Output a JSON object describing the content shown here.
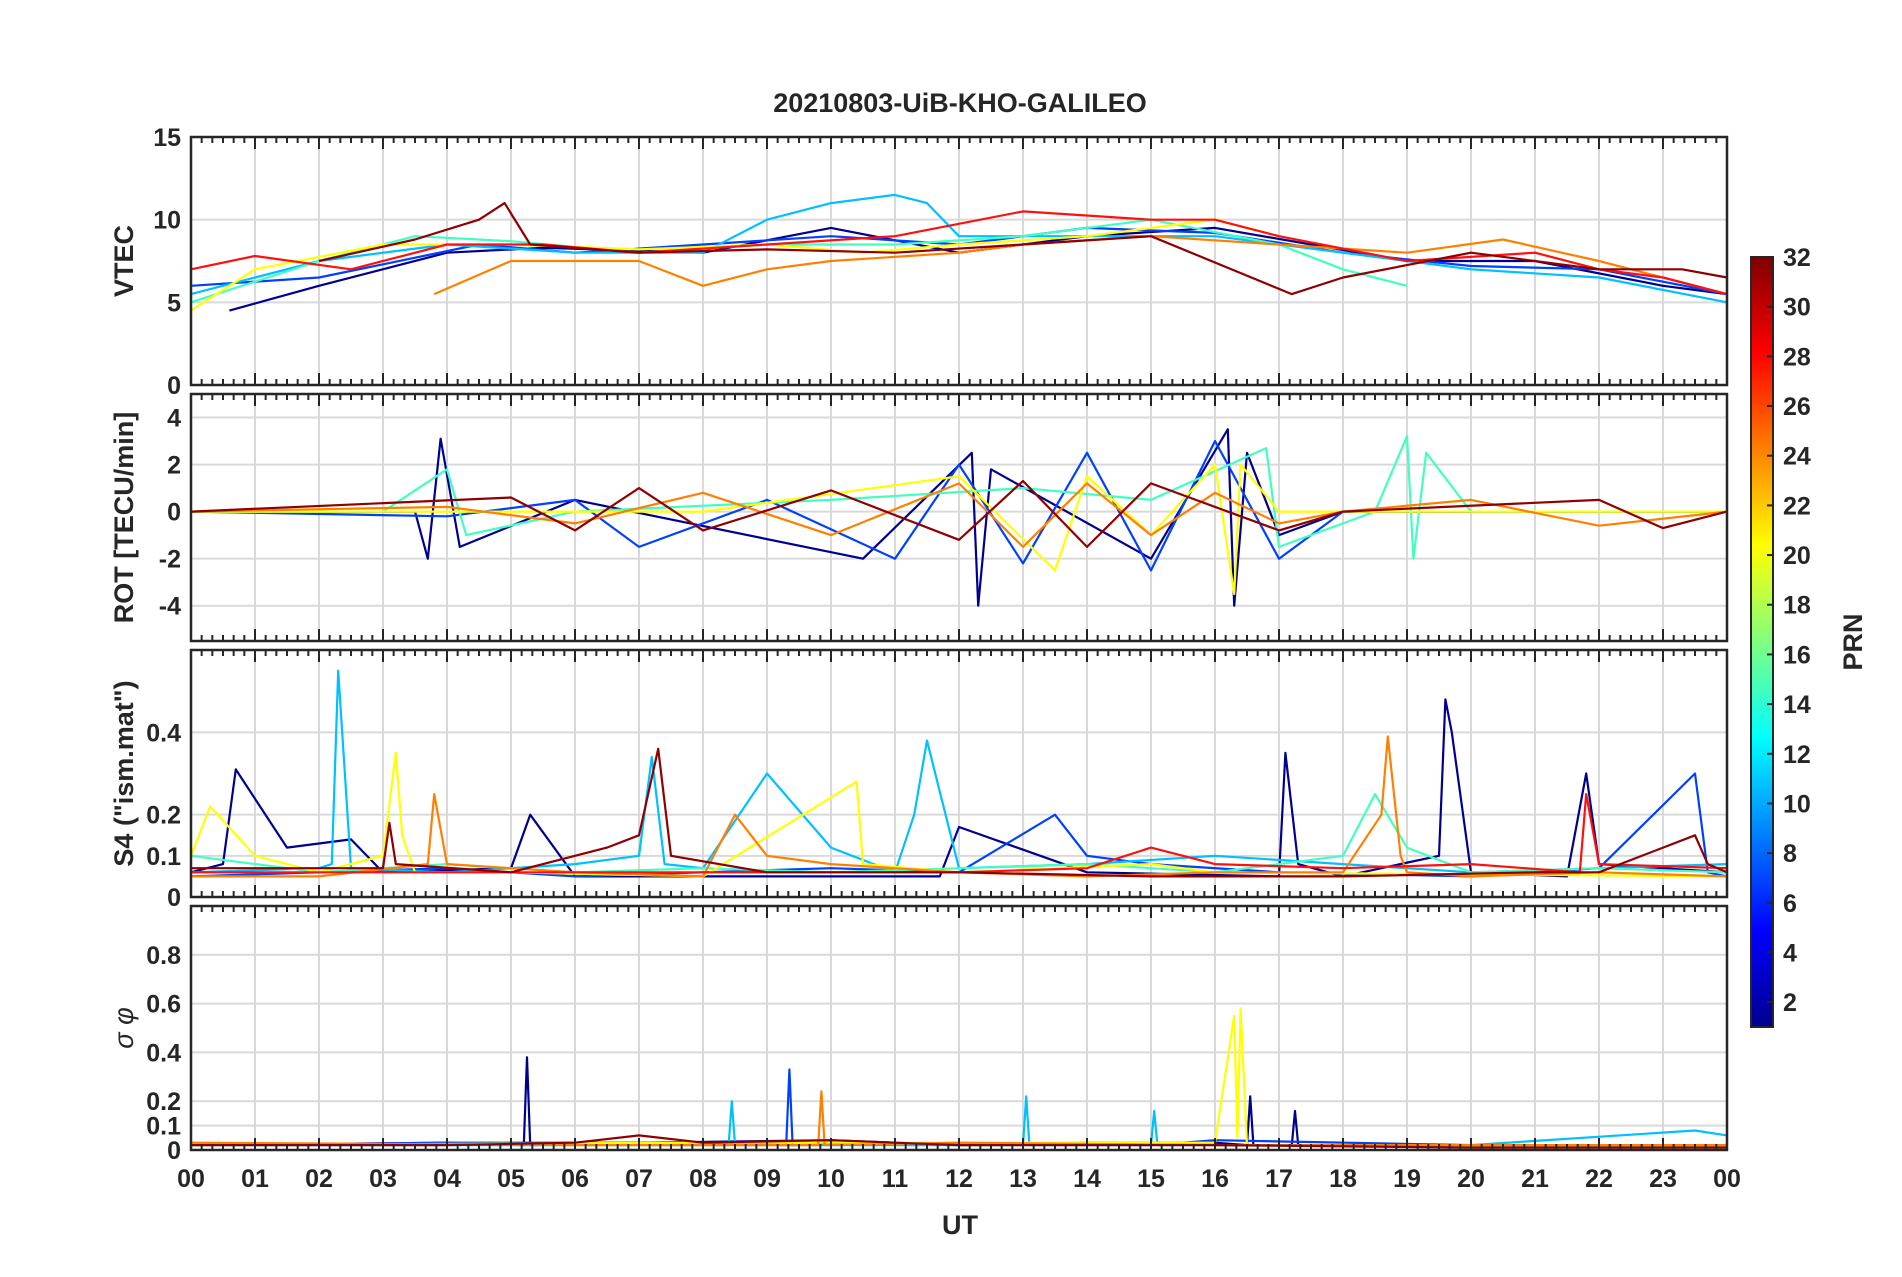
{
  "title": "20210803-UiB-KHO-GALILEO",
  "xlabel": "UT",
  "x_tick_labels": [
    "00",
    "01",
    "02",
    "03",
    "04",
    "05",
    "06",
    "07",
    "08",
    "09",
    "10",
    "11",
    "12",
    "13",
    "14",
    "15",
    "16",
    "17",
    "18",
    "19",
    "20",
    "21",
    "22",
    "23",
    "00"
  ],
  "colorbar": {
    "label": "PRN",
    "range": [
      1,
      32
    ],
    "tick_labels": [
      "2",
      "4",
      "6",
      "8",
      "10",
      "12",
      "14",
      "16",
      "18",
      "20",
      "22",
      "24",
      "26",
      "28",
      "30",
      "32"
    ],
    "colormap": "jet"
  },
  "chart_data": [
    {
      "type": "line",
      "ylabel": "VTEC",
      "ylim": [
        0,
        15
      ],
      "y_tick_labels": [
        "0",
        "5",
        "10",
        "15"
      ],
      "grid": true,
      "series": [
        {
          "color": "#00008f",
          "x": [
            0.6,
            2,
            4,
            5.5,
            8,
            10,
            12,
            14,
            16,
            17.5,
            19,
            21,
            23,
            24
          ],
          "y": [
            4.5,
            6,
            8,
            8.3,
            8,
            9.5,
            8,
            9,
            9.5,
            8.5,
            7.5,
            7.5,
            6,
            5.5
          ]
        },
        {
          "color": "#0040ff",
          "x": [
            0,
            2,
            4.5,
            6,
            8,
            10,
            12,
            14,
            16,
            18,
            20,
            22,
            24
          ],
          "y": [
            6,
            6.5,
            8.5,
            8,
            8.5,
            9,
            8.5,
            9.5,
            9.2,
            8,
            7.2,
            7,
            5.5
          ]
        },
        {
          "color": "#00c0ff",
          "x": [
            0,
            2,
            4,
            6,
            8,
            9,
            10,
            11,
            11.5,
            12,
            14,
            16,
            18,
            20,
            22,
            24
          ],
          "y": [
            5.5,
            7.5,
            8.5,
            8,
            8,
            10,
            11,
            11.5,
            11,
            9,
            9,
            9,
            8,
            7,
            6.5,
            5
          ]
        },
        {
          "color": "#40ffbf",
          "x": [
            0,
            2,
            3.5,
            5,
            7,
            9,
            11,
            13,
            15,
            17,
            18,
            19
          ],
          "y": [
            5,
            7.5,
            9,
            8.7,
            8,
            8.5,
            8.5,
            9,
            10,
            8.5,
            7,
            6
          ]
        },
        {
          "color": "#ffff00",
          "x": [
            0,
            1,
            3,
            5,
            7,
            9,
            10.5,
            12,
            14,
            16,
            17
          ],
          "y": [
            4.5,
            7,
            8.5,
            8.5,
            8.2,
            8.5,
            8,
            8.5,
            9,
            10,
            9
          ]
        },
        {
          "color": "#ff8000",
          "x": [
            3.8,
            5,
            7,
            8,
            9,
            10,
            12,
            13,
            15,
            17,
            19,
            20.5,
            22,
            24
          ],
          "y": [
            5.5,
            7.5,
            7.5,
            6,
            7,
            7.5,
            8,
            8.5,
            9,
            8.5,
            8,
            8.8,
            7.5,
            5.5
          ]
        },
        {
          "color": "#ff1010",
          "x": [
            0,
            1,
            2.5,
            4,
            5.5,
            7,
            9,
            11,
            13,
            15,
            16,
            17,
            19,
            21,
            22,
            23,
            24
          ],
          "y": [
            7,
            7.8,
            7,
            8.5,
            8.5,
            8,
            8.5,
            9,
            10.5,
            10,
            10,
            9,
            7.5,
            8,
            7,
            6.5,
            5.5
          ]
        },
        {
          "color": "#8f0000",
          "x": [
            2,
            3.5,
            4.5,
            4.9,
            5.3,
            7,
            9,
            11,
            13,
            15,
            17.2,
            18,
            20,
            22,
            23.3,
            24
          ],
          "y": [
            7.5,
            8.8,
            10,
            11,
            8.5,
            8,
            8.2,
            8,
            8.5,
            9,
            5.5,
            6.5,
            8,
            7,
            7,
            6.5
          ]
        }
      ]
    },
    {
      "type": "line",
      "ylabel": "ROT [TECU/min]",
      "ylim": [
        -5.5,
        5
      ],
      "y_tick_labels": [
        "-4",
        "-2",
        "0",
        "2",
        "4"
      ],
      "grid": true,
      "series": [
        {
          "color": "#00008f",
          "x": [
            0,
            3.5,
            3.7,
            3.9,
            4.2,
            6,
            10.5,
            12.2,
            12.3,
            12.5,
            15,
            16.2,
            16.3,
            16.5,
            17,
            18,
            24
          ],
          "y": [
            0,
            0,
            -2,
            3.1,
            -1.5,
            0.5,
            -2,
            2.5,
            -4,
            1.8,
            -2,
            3.5,
            -4,
            2.5,
            -1,
            0,
            0
          ]
        },
        {
          "color": "#0040ff",
          "x": [
            0,
            4,
            6,
            7,
            9,
            11,
            12,
            13,
            14,
            15,
            16,
            17,
            18,
            24
          ],
          "y": [
            0,
            -0.2,
            0.5,
            -1.5,
            0.5,
            -2,
            2,
            -2.2,
            2.5,
            -2.5,
            3,
            -2,
            0,
            0
          ]
        },
        {
          "color": "#40ffbf",
          "x": [
            0,
            3,
            4,
            4.3,
            6,
            10,
            13,
            15,
            16.8,
            17,
            18.5,
            19,
            19.1,
            19.3,
            20,
            24
          ],
          "y": [
            0,
            0,
            1.8,
            -1,
            0,
            0.5,
            1,
            0.5,
            2.7,
            -1.5,
            0,
            3.2,
            -2,
            2.5,
            0,
            0
          ]
        },
        {
          "color": "#ffff00",
          "x": [
            0,
            4,
            8,
            12,
            13.5,
            14,
            15,
            16,
            16.3,
            16.4,
            17,
            18,
            24
          ],
          "y": [
            0,
            0,
            0,
            1.5,
            -2.5,
            1.5,
            -1,
            2,
            -3.5,
            2,
            0,
            0,
            0
          ]
        },
        {
          "color": "#ff8000",
          "x": [
            0,
            4,
            6,
            8,
            10,
            12,
            13,
            14,
            15,
            16,
            17,
            18,
            20,
            22,
            24
          ],
          "y": [
            0,
            0.2,
            -0.5,
            0.8,
            -1,
            1.2,
            -1.5,
            1.2,
            -1,
            0.8,
            -0.5,
            0,
            0.5,
            -0.6,
            0
          ]
        },
        {
          "color": "#8f0000",
          "x": [
            0,
            5,
            6,
            7,
            8,
            10,
            12,
            13,
            14,
            15,
            17,
            18,
            22,
            23,
            24
          ],
          "y": [
            0,
            0.6,
            -0.8,
            1,
            -0.8,
            0.9,
            -1.2,
            1.3,
            -1.5,
            1.2,
            -0.8,
            0,
            0.5,
            -0.7,
            0
          ]
        }
      ]
    },
    {
      "type": "line",
      "ylabel": "S4 (\"ism.mat\")",
      "ylim": [
        0,
        0.6
      ],
      "y_tick_labels": [
        "0",
        "0.1",
        "0.2",
        "0.4"
      ],
      "grid": true,
      "series": [
        {
          "color": "#00008f",
          "x": [
            0,
            0.5,
            0.7,
            1.5,
            2.5,
            3,
            5,
            5.3,
            6,
            8,
            11.7,
            12,
            14,
            17,
            17.1,
            17.3,
            18,
            19.5,
            19.6,
            19.7,
            20,
            21.5,
            21.8,
            22,
            24
          ],
          "y": [
            0.06,
            0.08,
            0.31,
            0.12,
            0.14,
            0.06,
            0.07,
            0.2,
            0.05,
            0.05,
            0.05,
            0.17,
            0.06,
            0.05,
            0.35,
            0.08,
            0.05,
            0.1,
            0.48,
            0.4,
            0.06,
            0.05,
            0.3,
            0.08,
            0.06
          ]
        },
        {
          "color": "#0040ff",
          "x": [
            0,
            2,
            4,
            6,
            8,
            10,
            12,
            13.5,
            14,
            15,
            17,
            20,
            22,
            23.5,
            23.7,
            24
          ],
          "y": [
            0.05,
            0.06,
            0.07,
            0.05,
            0.06,
            0.07,
            0.06,
            0.2,
            0.1,
            0.08,
            0.06,
            0.05,
            0.07,
            0.3,
            0.06,
            0.05
          ]
        },
        {
          "color": "#00c0ff",
          "x": [
            0,
            2,
            2.2,
            2.3,
            2.5,
            4,
            6,
            7,
            7.2,
            7.4,
            8,
            9,
            10,
            11,
            11.3,
            11.5,
            12,
            14,
            16,
            18,
            20,
            22,
            24
          ],
          "y": [
            0.06,
            0.07,
            0.08,
            0.55,
            0.07,
            0.06,
            0.08,
            0.1,
            0.34,
            0.08,
            0.07,
            0.3,
            0.12,
            0.06,
            0.2,
            0.38,
            0.07,
            0.08,
            0.1,
            0.08,
            0.06,
            0.07,
            0.08
          ]
        },
        {
          "color": "#40ffbf",
          "x": [
            0,
            2,
            4,
            6,
            8,
            10,
            12,
            14,
            16,
            18,
            18.5,
            19,
            20,
            22,
            24
          ],
          "y": [
            0.1,
            0.06,
            0.08,
            0.06,
            0.07,
            0.06,
            0.07,
            0.08,
            0.06,
            0.1,
            0.25,
            0.12,
            0.06,
            0.07,
            0.06
          ]
        },
        {
          "color": "#ffff00",
          "x": [
            0,
            0.3,
            1,
            2,
            3,
            3.2,
            3.3,
            3.5,
            5,
            8,
            10.4,
            10.5,
            12,
            15,
            16,
            24
          ],
          "y": [
            0.1,
            0.22,
            0.1,
            0.06,
            0.1,
            0.35,
            0.15,
            0.06,
            0.06,
            0.05,
            0.28,
            0.08,
            0.06,
            0.08,
            0.06,
            0.05
          ]
        },
        {
          "color": "#ff8000",
          "x": [
            0,
            2,
            3.7,
            3.8,
            4,
            6,
            8,
            8.5,
            9,
            10,
            12,
            14,
            16,
            18,
            18.6,
            18.7,
            18.9,
            19,
            20,
            22,
            24
          ],
          "y": [
            0.05,
            0.05,
            0.08,
            0.25,
            0.08,
            0.06,
            0.05,
            0.2,
            0.1,
            0.08,
            0.06,
            0.05,
            0.06,
            0.06,
            0.2,
            0.39,
            0.1,
            0.06,
            0.05,
            0.06,
            0.05
          ]
        },
        {
          "color": "#ff1010",
          "x": [
            0,
            3,
            6,
            9,
            12,
            14,
            15,
            16,
            18,
            20,
            21.7,
            21.8,
            22,
            24
          ],
          "y": [
            0.06,
            0.06,
            0.06,
            0.06,
            0.06,
            0.07,
            0.12,
            0.08,
            0.07,
            0.08,
            0.06,
            0.25,
            0.08,
            0.07
          ]
        },
        {
          "color": "#8f0000",
          "x": [
            0,
            3,
            3.1,
            3.2,
            5,
            6.5,
            7,
            7.3,
            7.5,
            9,
            12,
            15,
            18,
            21,
            22,
            23.5,
            23.7,
            24
          ],
          "y": [
            0.07,
            0.07,
            0.18,
            0.08,
            0.06,
            0.12,
            0.15,
            0.36,
            0.1,
            0.06,
            0.06,
            0.05,
            0.05,
            0.06,
            0.06,
            0.15,
            0.08,
            0.06
          ]
        }
      ]
    },
    {
      "type": "line",
      "ylabel": "σ φ",
      "ylim": [
        0,
        1
      ],
      "y_tick_labels": [
        "0",
        "0.1",
        "0.2",
        "0.4",
        "0.6",
        "0.8"
      ],
      "grid": true,
      "series": [
        {
          "color": "#00008f",
          "x": [
            0,
            4,
            5.2,
            5.25,
            5.3,
            7,
            10,
            12,
            14,
            16,
            16.5,
            16.55,
            16.6,
            17.2,
            17.25,
            17.3,
            20,
            24
          ],
          "y": [
            0.02,
            0.03,
            0.02,
            0.38,
            0.02,
            0.03,
            0.04,
            0.02,
            0.03,
            0.03,
            0.02,
            0.22,
            0.02,
            0.02,
            0.16,
            0.02,
            0.02,
            0.02
          ]
        },
        {
          "color": "#0040ff",
          "x": [
            0,
            4,
            8,
            9.3,
            9.35,
            9.4,
            12,
            15,
            16,
            20,
            24
          ],
          "y": [
            0.02,
            0.03,
            0.03,
            0.02,
            0.33,
            0.02,
            0.03,
            0.02,
            0.04,
            0.02,
            0.02
          ]
        },
        {
          "color": "#00c0ff",
          "x": [
            0,
            3,
            6,
            8.4,
            8.45,
            8.5,
            12,
            13,
            13.05,
            13.1,
            15,
            15.05,
            15.1,
            20,
            23.5,
            24
          ],
          "y": [
            0.02,
            0.02,
            0.02,
            0.02,
            0.2,
            0.02,
            0.02,
            0.02,
            0.22,
            0.02,
            0.02,
            0.16,
            0.02,
            0.02,
            0.08,
            0.06
          ]
        },
        {
          "color": "#ffff00",
          "x": [
            0,
            8,
            12,
            16,
            16.3,
            16.35,
            16.4,
            16.5,
            20,
            24
          ],
          "y": [
            0.02,
            0.03,
            0.03,
            0.03,
            0.55,
            0.05,
            0.58,
            0.02,
            0.02,
            0.02
          ]
        },
        {
          "color": "#ff8000",
          "x": [
            0,
            6,
            9.8,
            9.85,
            9.9,
            12,
            16,
            20,
            24
          ],
          "y": [
            0.03,
            0.02,
            0.02,
            0.24,
            0.02,
            0.03,
            0.02,
            0.02,
            0.02
          ]
        },
        {
          "color": "#8f0000",
          "x": [
            0,
            4,
            6,
            7,
            8,
            10,
            12,
            16,
            20,
            24
          ],
          "y": [
            0.02,
            0.02,
            0.03,
            0.06,
            0.03,
            0.04,
            0.02,
            0.02,
            0.01,
            0.01
          ]
        }
      ]
    }
  ]
}
